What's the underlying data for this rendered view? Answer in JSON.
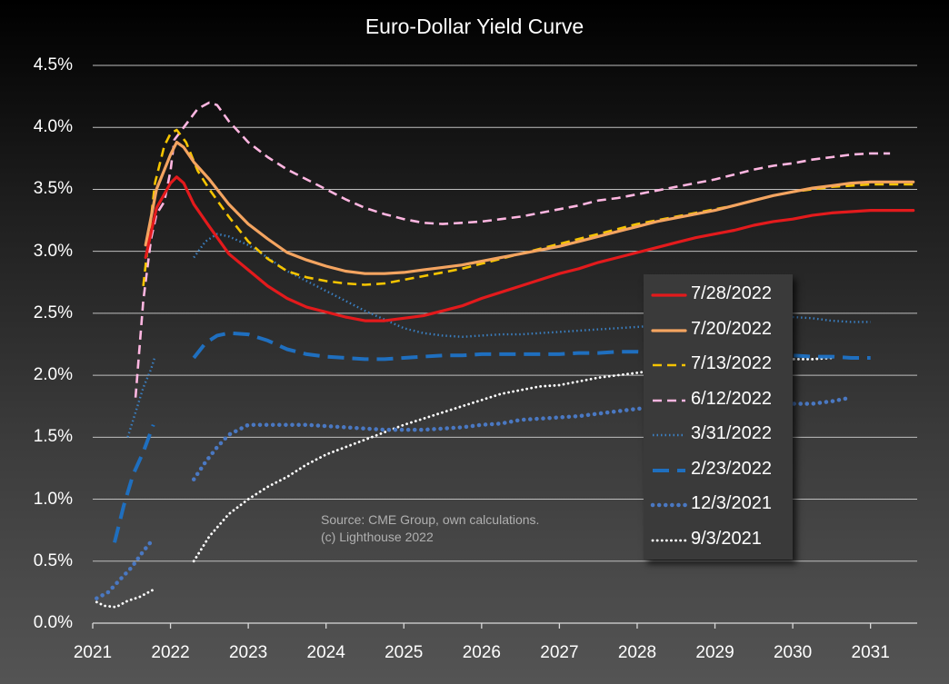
{
  "chart_data": {
    "type": "line",
    "title": "Euro-Dollar Yield Curve",
    "xlabel": "",
    "ylabel": "",
    "xlim": [
      2021,
      2031.6
    ],
    "ylim": [
      0,
      4.5
    ],
    "x_ticks": [
      "2021",
      "2022",
      "2023",
      "2024",
      "2025",
      "2026",
      "2027",
      "2028",
      "2029",
      "2030",
      "2031"
    ],
    "y_ticks": [
      "0.0%",
      "0.5%",
      "1.0%",
      "1.5%",
      "2.0%",
      "2.5%",
      "3.0%",
      "3.5%",
      "4.0%",
      "4.5%"
    ],
    "grid": "horizontal",
    "legend_position": "lower-right",
    "source": [
      "Source: CME Group, own calculations.",
      "(c) Lighthouse 2022"
    ],
    "series": [
      {
        "name": "7/28/2022",
        "color": "#e31a1c",
        "style": "solid",
        "x": [
          2021.68,
          2021.82,
          2022.0,
          2022.08,
          2022.17,
          2022.3,
          2022.5,
          2022.75,
          2023.0,
          2023.25,
          2023.5,
          2023.75,
          2024.0,
          2024.25,
          2024.5,
          2024.75,
          2025.0,
          2025.25,
          2025.5,
          2025.75,
          2026.0,
          2026.25,
          2026.5,
          2026.75,
          2027.0,
          2027.25,
          2027.5,
          2027.75,
          2028.0,
          2028.25,
          2028.5,
          2028.75,
          2029.0,
          2029.25,
          2029.5,
          2029.75,
          2030.0,
          2030.25,
          2030.5,
          2030.75,
          2031.0,
          2031.25,
          2031.55
        ],
        "y": [
          2.95,
          3.35,
          3.55,
          3.6,
          3.55,
          3.38,
          3.2,
          2.98,
          2.85,
          2.72,
          2.62,
          2.55,
          2.51,
          2.47,
          2.44,
          2.44,
          2.46,
          2.48,
          2.52,
          2.56,
          2.62,
          2.67,
          2.72,
          2.77,
          2.82,
          2.86,
          2.91,
          2.95,
          2.99,
          3.03,
          3.07,
          3.11,
          3.14,
          3.17,
          3.21,
          3.24,
          3.26,
          3.29,
          3.31,
          3.32,
          3.33,
          3.33,
          3.33
        ]
      },
      {
        "name": "7/20/2022",
        "color": "#f4a460",
        "style": "solid",
        "x": [
          2021.68,
          2021.82,
          2022.0,
          2022.08,
          2022.17,
          2022.3,
          2022.5,
          2022.75,
          2023.0,
          2023.25,
          2023.5,
          2023.75,
          2024.0,
          2024.25,
          2024.5,
          2024.75,
          2025.0,
          2025.25,
          2025.5,
          2025.75,
          2026.0,
          2026.25,
          2026.5,
          2026.75,
          2027.0,
          2027.25,
          2027.5,
          2027.75,
          2028.0,
          2028.25,
          2028.5,
          2028.75,
          2029.0,
          2029.25,
          2029.5,
          2029.75,
          2030.0,
          2030.25,
          2030.5,
          2030.75,
          2031.0,
          2031.25,
          2031.55
        ],
        "y": [
          3.05,
          3.5,
          3.78,
          3.88,
          3.84,
          3.72,
          3.58,
          3.38,
          3.22,
          3.1,
          2.99,
          2.93,
          2.88,
          2.84,
          2.82,
          2.82,
          2.83,
          2.85,
          2.87,
          2.89,
          2.92,
          2.95,
          2.98,
          3.01,
          3.04,
          3.08,
          3.12,
          3.16,
          3.2,
          3.24,
          3.27,
          3.3,
          3.33,
          3.37,
          3.41,
          3.45,
          3.48,
          3.51,
          3.53,
          3.55,
          3.56,
          3.56,
          3.56
        ]
      },
      {
        "name": "7/13/2022",
        "color": "#f5c400",
        "style": "dashed",
        "x": [
          2021.65,
          2021.8,
          2021.92,
          2022.0,
          2022.08,
          2022.2,
          2022.35,
          2022.5,
          2022.75,
          2023.0,
          2023.25,
          2023.5,
          2023.75,
          2024.0,
          2024.25,
          2024.5,
          2024.75,
          2025.0,
          2025.25,
          2025.5,
          2025.75,
          2026.0,
          2026.25,
          2026.5,
          2026.75,
          2027.0,
          2027.25,
          2027.5,
          2027.75,
          2028.0,
          2028.25,
          2028.5,
          2028.75,
          2029.0,
          2029.25,
          2029.5,
          2029.75,
          2030.0,
          2030.25,
          2030.5,
          2030.75,
          2031.0,
          2031.25,
          2031.55
        ],
        "y": [
          2.72,
          3.55,
          3.85,
          3.95,
          3.98,
          3.88,
          3.65,
          3.5,
          3.28,
          3.08,
          2.94,
          2.84,
          2.79,
          2.76,
          2.74,
          2.73,
          2.74,
          2.77,
          2.8,
          2.83,
          2.86,
          2.9,
          2.94,
          2.98,
          3.02,
          3.06,
          3.1,
          3.14,
          3.18,
          3.22,
          3.25,
          3.28,
          3.31,
          3.34,
          3.37,
          3.41,
          3.45,
          3.48,
          3.5,
          3.52,
          3.53,
          3.54,
          3.54,
          3.54
        ]
      },
      {
        "name": "6/12/2022",
        "color": "#ffb6e1",
        "style": "dashed",
        "x": [
          2021.55,
          2021.65,
          2021.75,
          2021.82,
          2021.92,
          2022.0,
          2022.05,
          2022.35,
          2022.5,
          2022.6,
          2022.75,
          2023.0,
          2023.25,
          2023.5,
          2023.75,
          2024.0,
          2024.25,
          2024.5,
          2024.75,
          2025.0,
          2025.25,
          2025.5,
          2025.75,
          2026.0,
          2026.25,
          2026.5,
          2026.75,
          2027.0,
          2027.25,
          2027.5,
          2027.75,
          2028.0,
          2028.25,
          2028.5,
          2028.75,
          2029.0,
          2029.25,
          2029.5,
          2029.75,
          2030.0,
          2030.25,
          2030.5,
          2030.75,
          2031.0,
          2031.25
        ],
        "y": [
          1.82,
          2.6,
          3.1,
          3.3,
          3.4,
          3.65,
          3.9,
          4.15,
          4.2,
          4.18,
          4.05,
          3.88,
          3.76,
          3.66,
          3.58,
          3.5,
          3.42,
          3.35,
          3.3,
          3.26,
          3.23,
          3.22,
          3.23,
          3.24,
          3.26,
          3.28,
          3.31,
          3.34,
          3.37,
          3.41,
          3.43,
          3.46,
          3.49,
          3.52,
          3.55,
          3.58,
          3.62,
          3.66,
          3.69,
          3.71,
          3.74,
          3.76,
          3.78,
          3.79,
          3.79
        ]
      },
      {
        "name": "3/31/2022",
        "color": "#3a7fc1",
        "style": "dotted",
        "segments": [
          {
            "x": [
              2021.45,
              2021.55,
              2021.65,
              2021.75,
              2021.8
            ],
            "y": [
              1.5,
              1.7,
              1.9,
              2.05,
              2.15
            ]
          },
          {
            "x": [
              2022.3,
              2022.45,
              2022.6,
              2022.75,
              2023.0,
              2023.25,
              2023.5,
              2023.75,
              2024.0,
              2024.25,
              2024.5,
              2024.75,
              2025.0,
              2025.25,
              2025.5,
              2025.75,
              2026.0,
              2026.25,
              2026.5,
              2026.75,
              2027.0,
              2027.25,
              2027.5,
              2027.75,
              2028.0,
              2028.25,
              2028.5,
              2028.75,
              2029.0,
              2029.25,
              2029.5,
              2029.75,
              2030.0,
              2030.25,
              2030.5,
              2030.75,
              2031.0
            ],
            "y": [
              2.95,
              3.08,
              3.14,
              3.12,
              3.05,
              2.95,
              2.84,
              2.76,
              2.68,
              2.6,
              2.52,
              2.45,
              2.38,
              2.34,
              2.32,
              2.31,
              2.32,
              2.33,
              2.33,
              2.34,
              2.35,
              2.36,
              2.37,
              2.38,
              2.39,
              2.4,
              2.41,
              2.42,
              2.43,
              2.44,
              2.45,
              2.46,
              2.47,
              2.46,
              2.44,
              2.43,
              2.43
            ]
          }
        ]
      },
      {
        "name": "2/23/2022",
        "color": "#1f6fbf",
        "style": "long-dashed",
        "segments": [
          {
            "x": [
              2021.28,
              2021.4,
              2021.52,
              2021.65,
              2021.78
            ],
            "y": [
              0.65,
              0.95,
              1.2,
              1.38,
              1.6
            ]
          },
          {
            "x": [
              2022.3,
              2022.45,
              2022.6,
              2022.75,
              2023.0,
              2023.25,
              2023.5,
              2023.75,
              2024.0,
              2024.25,
              2024.5,
              2024.75,
              2025.0,
              2025.25,
              2025.5,
              2025.75,
              2026.0,
              2026.25,
              2026.5,
              2026.75,
              2027.0,
              2027.25,
              2027.5,
              2027.75,
              2028.0,
              2028.25,
              2028.5,
              2028.75,
              2029.0,
              2029.25,
              2029.5,
              2029.75,
              2030.0,
              2030.25,
              2030.5,
              2030.75,
              2031.0
            ],
            "y": [
              2.14,
              2.26,
              2.32,
              2.34,
              2.33,
              2.28,
              2.21,
              2.17,
              2.15,
              2.14,
              2.13,
              2.13,
              2.14,
              2.15,
              2.16,
              2.16,
              2.17,
              2.17,
              2.17,
              2.17,
              2.17,
              2.18,
              2.18,
              2.19,
              2.19,
              2.18,
              2.17,
              2.17,
              2.17,
              2.16,
              2.16,
              2.16,
              2.16,
              2.15,
              2.15,
              2.14,
              2.14
            ]
          }
        ]
      },
      {
        "name": "12/3/2021",
        "color": "#4a78c2",
        "style": "round-dotted",
        "segments": [
          {
            "x": [
              2021.05,
              2021.2,
              2021.35,
              2021.5,
              2021.65,
              2021.78
            ],
            "y": [
              0.2,
              0.25,
              0.35,
              0.45,
              0.58,
              0.68
            ]
          },
          {
            "x": [
              2022.3,
              2022.45,
              2022.6,
              2022.75,
              2023.0,
              2023.25,
              2023.5,
              2023.75,
              2024.0,
              2024.25,
              2024.5,
              2024.75,
              2025.0,
              2025.25,
              2025.5,
              2025.75,
              2026.0,
              2026.25,
              2026.5,
              2026.75,
              2027.0,
              2027.25,
              2027.5,
              2027.75,
              2028.0,
              2028.25,
              2028.5,
              2028.75,
              2029.0,
              2029.25,
              2029.5,
              2029.75,
              2030.0,
              2030.25,
              2030.5,
              2030.75
            ],
            "y": [
              1.16,
              1.3,
              1.42,
              1.52,
              1.6,
              1.6,
              1.6,
              1.6,
              1.59,
              1.58,
              1.57,
              1.56,
              1.56,
              1.56,
              1.57,
              1.58,
              1.6,
              1.61,
              1.64,
              1.65,
              1.66,
              1.67,
              1.69,
              1.71,
              1.73,
              1.74,
              1.75,
              1.76,
              1.77,
              1.77,
              1.78,
              1.78,
              1.77,
              1.77,
              1.79,
              1.82
            ]
          }
        ]
      },
      {
        "name": "9/3/2021",
        "color": "#ffffff",
        "style": "fine-dotted",
        "segments": [
          {
            "x": [
              2021.05,
              2021.15,
              2021.3,
              2021.45,
              2021.6,
              2021.78
            ],
            "y": [
              0.17,
              0.14,
              0.13,
              0.18,
              0.21,
              0.27
            ]
          },
          {
            "x": [
              2022.3,
              2022.5,
              2022.75,
              2023.0,
              2023.25,
              2023.5,
              2023.75,
              2024.0,
              2024.25,
              2024.5,
              2024.75,
              2025.0,
              2025.25,
              2025.5,
              2025.75,
              2026.0,
              2026.25,
              2026.5,
              2026.75,
              2027.0,
              2027.25,
              2027.5,
              2027.75,
              2028.0,
              2028.25,
              2028.5,
              2028.75,
              2029.0,
              2029.25,
              2029.5,
              2029.75,
              2030.0,
              2030.25,
              2030.5
            ],
            "y": [
              0.5,
              0.7,
              0.88,
              1.0,
              1.1,
              1.18,
              1.28,
              1.36,
              1.42,
              1.48,
              1.54,
              1.6,
              1.65,
              1.7,
              1.75,
              1.8,
              1.85,
              1.88,
              1.91,
              1.92,
              1.95,
              1.98,
              2.0,
              2.02,
              2.04,
              2.06,
              2.08,
              2.09,
              2.1,
              2.11,
              2.12,
              2.13,
              2.13,
              2.14
            ]
          }
        ]
      }
    ]
  }
}
